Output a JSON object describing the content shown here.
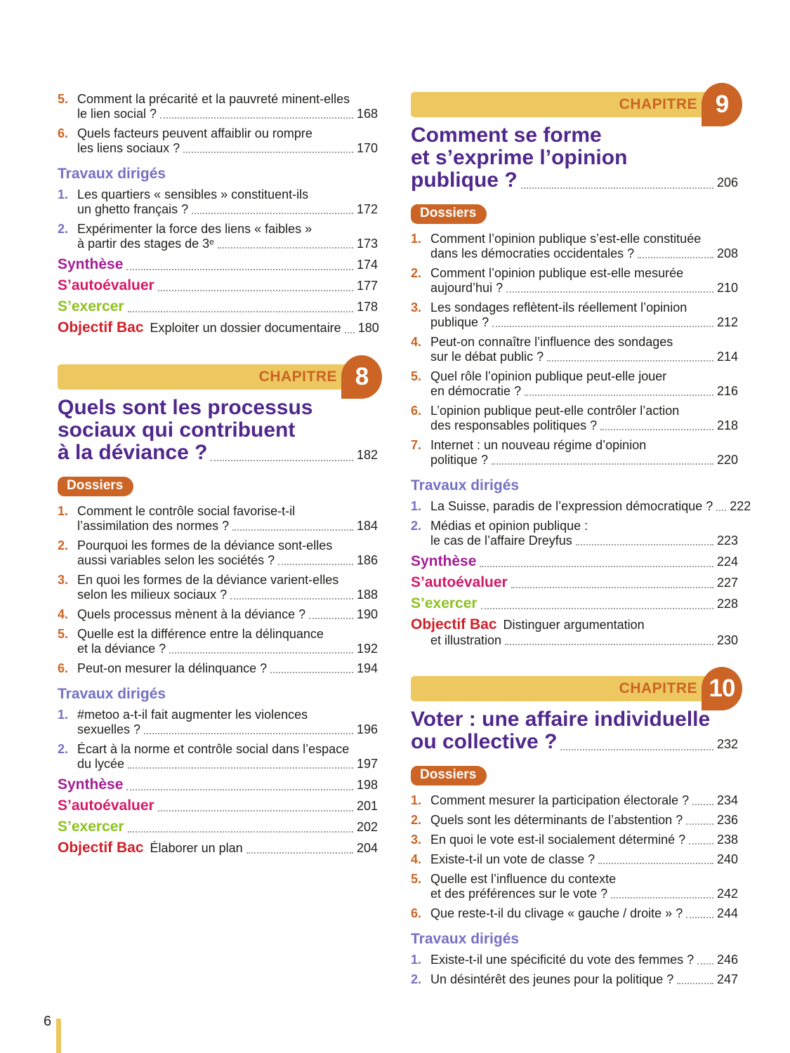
{
  "page": {
    "folio": "6"
  },
  "colors": {
    "orange": "#cb6424",
    "yellow": "#edc75f",
    "purple_title": "#50288c",
    "periwinkle": "#7570c4",
    "synthese": "#a41d96",
    "autoevaluer": "#d41a68",
    "exercer": "#8dc21f",
    "objectif": "#d0202a",
    "text": "#1d1d1b",
    "dots": "#9b9b9b"
  },
  "columns": [
    {
      "side": "left",
      "blocks": [
        {
          "type": "entry",
          "n": "5.",
          "ncls": "orange",
          "lines": [
            "Comment la précarité et la pauvreté minent-elles",
            "le lien social ?"
          ],
          "page": "168"
        },
        {
          "type": "entry",
          "n": "6.",
          "ncls": "orange",
          "lines": [
            "Quels facteurs peuvent affaiblir ou rompre",
            "les liens sociaux ?"
          ],
          "page": "170"
        },
        {
          "type": "heading",
          "label": "Travaux dirigés"
        },
        {
          "type": "entry",
          "n": "1.",
          "ncls": "purple",
          "lines": [
            "Les quartiers « sensibles » constituent-ils",
            "un ghetto français ?"
          ],
          "page": "172"
        },
        {
          "type": "entry",
          "n": "2.",
          "ncls": "purple",
          "lines": [
            "Expérimenter la force des liens « faibles »",
            "à partir des stages de 3ᵉ"
          ],
          "page": "173"
        },
        {
          "type": "special",
          "cls": "synthese",
          "label": "Synthèse",
          "page": "174"
        },
        {
          "type": "special",
          "cls": "autoevaluer",
          "label": "S’autoévaluer",
          "page": "177"
        },
        {
          "type": "special",
          "cls": "exercer",
          "label": "S’exercer",
          "page": "178"
        },
        {
          "type": "special",
          "cls": "objectif",
          "label": "Objectif Bac",
          "suffix": [
            "Exploiter un dossier documentaire"
          ],
          "page": "180"
        },
        {
          "type": "banner",
          "label": "CHAPITRE",
          "number": "8"
        },
        {
          "type": "title",
          "lines": [
            "Quels sont les processus",
            "sociaux qui contribuent",
            "à la déviance ?"
          ],
          "page": "182"
        },
        {
          "type": "badge",
          "label": "Dossiers"
        },
        {
          "type": "entry",
          "n": "1.",
          "ncls": "orange",
          "lines": [
            "Comment le contrôle social favorise-t-il",
            "l’assimilation des normes ?"
          ],
          "page": "184"
        },
        {
          "type": "entry",
          "n": "2.",
          "ncls": "orange",
          "lines": [
            "Pourquoi les formes de la déviance sont-elles",
            "aussi variables selon les sociétés ?"
          ],
          "page": "186"
        },
        {
          "type": "entry",
          "n": "3.",
          "ncls": "orange",
          "lines": [
            "En quoi les formes de la déviance varient-elles",
            "selon les milieux sociaux ?"
          ],
          "page": "188"
        },
        {
          "type": "entry",
          "n": "4.",
          "ncls": "orange",
          "lines": [
            "Quels processus mènent à la déviance ?"
          ],
          "page": "190"
        },
        {
          "type": "entry",
          "n": "5.",
          "ncls": "orange",
          "lines": [
            "Quelle est la différence entre la délinquance",
            "et la déviance ?"
          ],
          "page": "192"
        },
        {
          "type": "entry",
          "n": "6.",
          "ncls": "orange",
          "lines": [
            "Peut-on mesurer la délinquance ?"
          ],
          "page": "194"
        },
        {
          "type": "heading",
          "label": "Travaux dirigés"
        },
        {
          "type": "entry",
          "n": "1.",
          "ncls": "purple",
          "lines": [
            "#metoo a-t-il fait augmenter les violences",
            "sexuelles ?"
          ],
          "page": "196"
        },
        {
          "type": "entry",
          "n": "2.",
          "ncls": "purple",
          "lines": [
            "Écart à la norme et contrôle social dans l’espace",
            "du lycée"
          ],
          "page": "197"
        },
        {
          "type": "special",
          "cls": "synthese",
          "label": "Synthèse",
          "page": "198"
        },
        {
          "type": "special",
          "cls": "autoevaluer",
          "label": "S’autoévaluer",
          "page": "201"
        },
        {
          "type": "special",
          "cls": "exercer",
          "label": "S’exercer",
          "page": "202"
        },
        {
          "type": "special",
          "cls": "objectif",
          "label": "Objectif Bac",
          "suffix": [
            "Élaborer un plan"
          ],
          "page": "204"
        }
      ]
    },
    {
      "side": "right",
      "blocks": [
        {
          "type": "banner",
          "label": "CHAPITRE",
          "number": "9"
        },
        {
          "type": "title",
          "lines": [
            "Comment se forme",
            "et s’exprime l’opinion",
            "publique ?"
          ],
          "page": "206"
        },
        {
          "type": "badge",
          "label": "Dossiers"
        },
        {
          "type": "entry",
          "n": "1.",
          "ncls": "orange",
          "lines": [
            "Comment l’opinion publique s’est-elle constituée",
            "dans les démocraties occidentales ?"
          ],
          "page": "208"
        },
        {
          "type": "entry",
          "n": "2.",
          "ncls": "orange",
          "lines": [
            "Comment l’opinion publique est-elle mesurée",
            "aujourd’hui ?"
          ],
          "page": "210"
        },
        {
          "type": "entry",
          "n": "3.",
          "ncls": "orange",
          "lines": [
            "Les sondages reflètent-ils réellement l’opinion",
            "publique ?"
          ],
          "page": "212"
        },
        {
          "type": "entry",
          "n": "4.",
          "ncls": "orange",
          "lines": [
            "Peut-on connaître l’influence des sondages",
            "sur le débat public ?"
          ],
          "page": "214"
        },
        {
          "type": "entry",
          "n": "5.",
          "ncls": "orange",
          "lines": [
            "Quel rôle l’opinion publique peut-elle jouer",
            "en démocratie ?"
          ],
          "page": "216"
        },
        {
          "type": "entry",
          "n": "6.",
          "ncls": "orange",
          "lines": [
            "L’opinion publique peut-elle contrôler l’action",
            "des responsables politiques ?"
          ],
          "page": "218"
        },
        {
          "type": "entry",
          "n": "7.",
          "ncls": "orange",
          "lines": [
            "Internet : un nouveau régime d’opinion",
            "politique ?"
          ],
          "page": "220"
        },
        {
          "type": "heading",
          "label": "Travaux dirigés"
        },
        {
          "type": "entry",
          "n": "1.",
          "ncls": "purple",
          "lines": [
            "La Suisse, paradis de l’expression démocratique ?"
          ],
          "page": "222"
        },
        {
          "type": "entry",
          "n": "2.",
          "ncls": "purple",
          "lines": [
            "Médias et opinion publique :",
            "le cas de l’affaire Dreyfus"
          ],
          "page": "223"
        },
        {
          "type": "special",
          "cls": "synthese",
          "label": "Synthèse",
          "page": "224"
        },
        {
          "type": "special",
          "cls": "autoevaluer",
          "label": "S’autoévaluer",
          "page": "227"
        },
        {
          "type": "special",
          "cls": "exercer",
          "label": "S’exercer",
          "page": "228"
        },
        {
          "type": "special",
          "cls": "objectif",
          "label": "Objectif Bac",
          "suffix": [
            "Distinguer argumentation",
            "et illustration"
          ],
          "page": "230"
        },
        {
          "type": "banner",
          "label": "CHAPITRE",
          "number": "10"
        },
        {
          "type": "title",
          "lines": [
            "Voter : une affaire individuelle",
            "ou collective ?"
          ],
          "page": "232"
        },
        {
          "type": "badge",
          "label": "Dossiers"
        },
        {
          "type": "entry",
          "n": "1.",
          "ncls": "orange",
          "lines": [
            "Comment mesurer la participation électorale ?"
          ],
          "page": "234"
        },
        {
          "type": "entry",
          "n": "2.",
          "ncls": "orange",
          "lines": [
            "Quels sont les déterminants de l’abstention ?"
          ],
          "page": "236"
        },
        {
          "type": "entry",
          "n": "3.",
          "ncls": "orange",
          "lines": [
            "En quoi le vote est-il socialement déterminé ?"
          ],
          "page": "238"
        },
        {
          "type": "entry",
          "n": "4.",
          "ncls": "orange",
          "lines": [
            "Existe-t-il un vote de classe ?"
          ],
          "page": "240"
        },
        {
          "type": "entry",
          "n": "5.",
          "ncls": "orange",
          "lines": [
            "Quelle est l’influence du contexte",
            "et des préférences sur le vote ?"
          ],
          "page": "242"
        },
        {
          "type": "entry",
          "n": "6.",
          "ncls": "orange",
          "lines": [
            "Que reste-t-il du clivage « gauche / droite » ?"
          ],
          "page": "244"
        },
        {
          "type": "heading",
          "label": "Travaux dirigés"
        },
        {
          "type": "entry",
          "n": "1.",
          "ncls": "purple",
          "lines": [
            "Existe-t-il une spécificité du vote des femmes ?"
          ],
          "page": "246"
        },
        {
          "type": "entry",
          "n": "2.",
          "ncls": "purple",
          "lines": [
            "Un désintérêt des jeunes pour la politique ?"
          ],
          "page": "247"
        }
      ]
    }
  ]
}
